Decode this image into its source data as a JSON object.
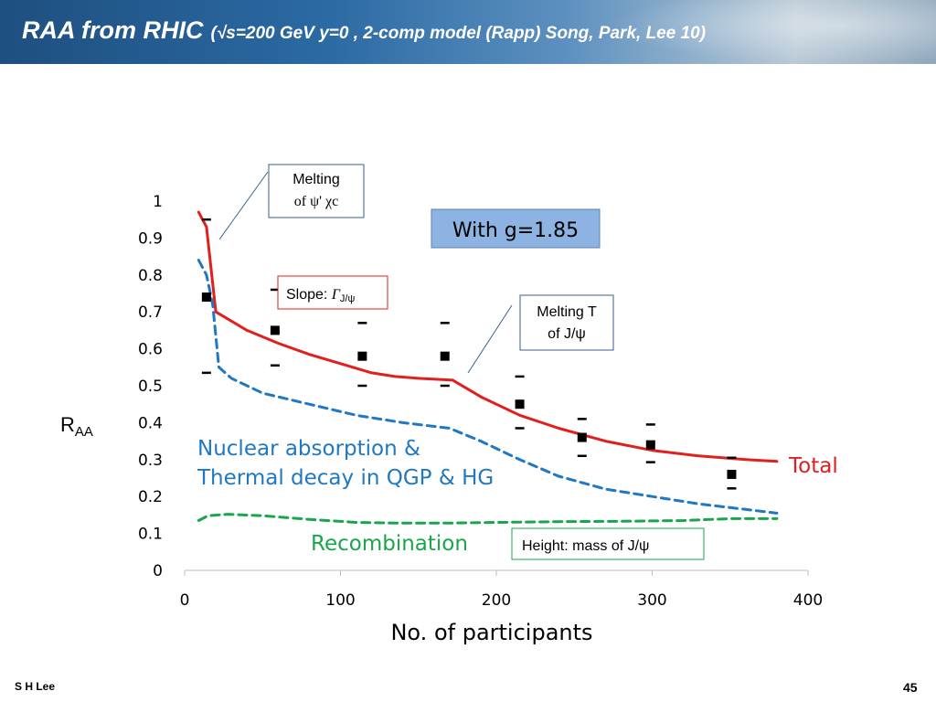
{
  "slide": {
    "title_main": "RAA from RHIC",
    "title_sub": "(√s=200 GeV  y=0 , 2-comp model (Rapp)  Song, Park, Lee 10)",
    "author": "S H Lee",
    "page_number": "45"
  },
  "colors": {
    "total": "#e0201e",
    "nuclear": "#1f78c1",
    "recombination": "#1aa54a",
    "data": "#000000"
  },
  "chart_data": {
    "type": "line",
    "xlabel": "No. of participants",
    "ylabel": {
      "main": "R",
      "sub": "AA"
    },
    "xlim": [
      0,
      400
    ],
    "ylim": [
      0,
      1
    ],
    "x_ticks": [
      "0",
      "100",
      "200",
      "300",
      "400"
    ],
    "y_ticks": [
      "0",
      "0.1",
      "0.2",
      "0.3",
      "0.4",
      "0.5",
      "0.6",
      "0.7",
      "0.8",
      "0.9",
      "1"
    ],
    "series": [
      {
        "name": "Total",
        "style": "solid",
        "color": "#e0201e",
        "x": [
          9,
          14,
          20,
          40,
          60,
          80,
          100,
          120,
          135,
          150,
          172,
          190,
          215,
          240,
          270,
          300,
          330,
          360,
          380
        ],
        "y": [
          0.97,
          0.93,
          0.7,
          0.65,
          0.615,
          0.585,
          0.56,
          0.535,
          0.525,
          0.52,
          0.515,
          0.47,
          0.42,
          0.385,
          0.35,
          0.325,
          0.31,
          0.3,
          0.295
        ]
      },
      {
        "name": "Nuclear absorption & Thermal decay in QGP & HG",
        "style": "dashed",
        "color": "#1f78c1",
        "x": [
          9,
          14,
          18,
          22,
          30,
          50,
          80,
          110,
          140,
          170,
          190,
          215,
          240,
          270,
          300,
          330,
          360,
          380
        ],
        "y": [
          0.84,
          0.8,
          0.72,
          0.55,
          0.52,
          0.48,
          0.45,
          0.42,
          0.4,
          0.385,
          0.35,
          0.3,
          0.255,
          0.22,
          0.2,
          0.18,
          0.165,
          0.155
        ]
      },
      {
        "name": "Recombination",
        "style": "dashed",
        "color": "#1aa54a",
        "x": [
          9,
          15,
          28,
          50,
          80,
          110,
          140,
          170,
          200,
          240,
          280,
          320,
          350,
          380
        ],
        "y": [
          0.135,
          0.148,
          0.152,
          0.148,
          0.138,
          0.13,
          0.128,
          0.128,
          0.13,
          0.132,
          0.133,
          0.135,
          0.14,
          0.14
        ]
      }
    ],
    "data_points": [
      {
        "x": 14,
        "y": 0.74,
        "upper": 0.95,
        "lower": 0.535
      },
      {
        "x": 58,
        "y": 0.65,
        "upper": 0.76,
        "lower": 0.555
      },
      {
        "x": 114,
        "y": 0.58,
        "upper": 0.67,
        "lower": 0.5
      },
      {
        "x": 167,
        "y": 0.58,
        "upper": 0.67,
        "lower": 0.5
      },
      {
        "x": 215,
        "y": 0.45,
        "upper": 0.525,
        "lower": 0.385
      },
      {
        "x": 255,
        "y": 0.36,
        "upper": 0.41,
        "lower": 0.31
      },
      {
        "x": 299,
        "y": 0.34,
        "upper": 0.395,
        "lower": 0.293
      },
      {
        "x": 351,
        "y": 0.26,
        "upper": 0.305,
        "lower": 0.222
      }
    ],
    "annotations": {
      "melting_psi": [
        "Melting",
        "of ψ' χc"
      ],
      "g_value": "With g=1.85",
      "slope": "Slope: ΓJ/ψ",
      "slope_main": "Slope: ",
      "slope_sym": "Γ",
      "slope_sub": "J/ψ",
      "melting_T": [
        "Melting T",
        "of J/ψ"
      ],
      "nuclear_label": [
        "Nuclear absorption &",
        "Thermal decay in QGP & HG"
      ],
      "total_label": "Total",
      "recomb_label": "Recombination",
      "height_label": "Height: mass of J/ψ"
    }
  }
}
